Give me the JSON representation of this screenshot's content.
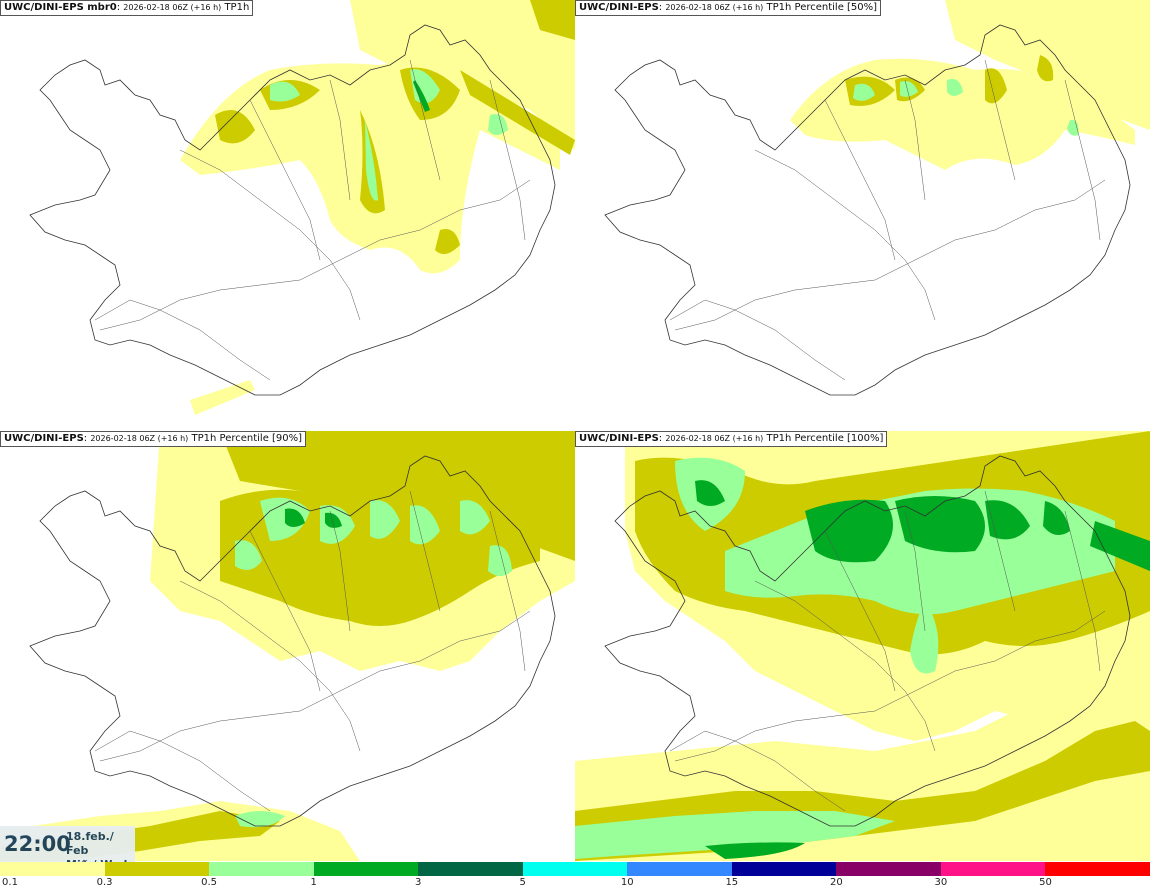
{
  "panels": [
    {
      "model": "UWC/DINI-EPS mbr0",
      "meta": "2026-02-18 06Z (+16 h)",
      "product": "TP1h"
    },
    {
      "model": "UWC/DINI-EPS",
      "meta": "2026-02-18 06Z (+16 h)",
      "product": "TP1h Percentile [50%]"
    },
    {
      "model": "UWC/DINI-EPS",
      "meta": "2026-02-18 06Z (+16 h)",
      "product": "TP1h Percentile [90%]"
    },
    {
      "model": "UWC/DINI-EPS",
      "meta": "2026-02-18 06Z (+16 h)",
      "product": "TP1h Percentile [100%]"
    }
  ],
  "valid_time": {
    "time": "22:00",
    "date_line1": "18.feb./ Feb",
    "date_line2": "Mið./ Wed"
  },
  "legend": {
    "labels": [
      "0.1",
      "0.3",
      "0.5",
      "1",
      "3",
      "5",
      "10",
      "15",
      "20",
      "30",
      "50"
    ],
    "colors": [
      "#ffff99",
      "#cccc00",
      "#99ff99",
      "#00aa22",
      "#006644",
      "#00ffee",
      "#3388ff",
      "#000099",
      "#880066",
      "#ff1188",
      "#ff0000"
    ]
  },
  "colors": {
    "light_yellow": "#ffff99",
    "olive": "#cccc00",
    "light_green": "#99ff99",
    "green": "#00aa22",
    "coastline": "#333333"
  }
}
